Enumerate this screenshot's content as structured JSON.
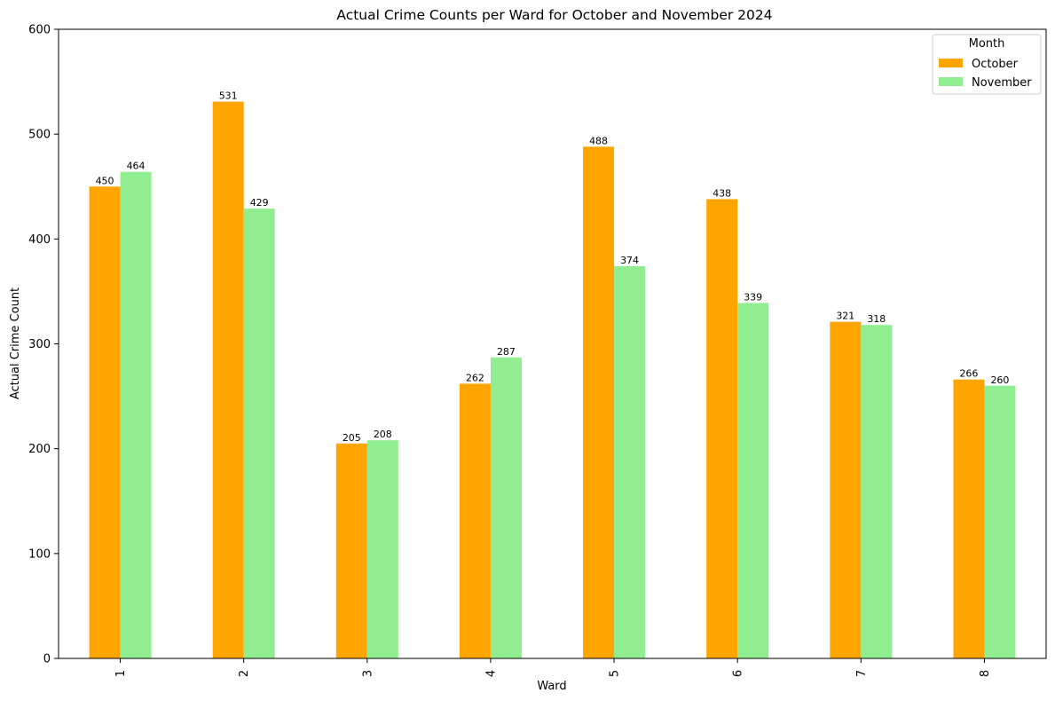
{
  "chart_data": {
    "type": "bar",
    "title": "Actual Crime Counts per Ward for October and November 2024",
    "xlabel": "Ward",
    "ylabel": "Actual Crime Count",
    "categories": [
      "1",
      "2",
      "3",
      "4",
      "5",
      "6",
      "7",
      "8"
    ],
    "series": [
      {
        "name": "October",
        "color": "#FFA500",
        "values": [
          450,
          531,
          205,
          262,
          488,
          438,
          321,
          266
        ]
      },
      {
        "name": "November",
        "color": "#90EE90",
        "values": [
          464,
          429,
          208,
          287,
          374,
          339,
          318,
          260
        ]
      }
    ],
    "ylim": [
      0,
      600
    ],
    "yticks": [
      0,
      100,
      200,
      300,
      400,
      500,
      600
    ],
    "grid": false,
    "legend": {
      "title": "Month",
      "placement": "top-right"
    },
    "bar_labels": true
  }
}
